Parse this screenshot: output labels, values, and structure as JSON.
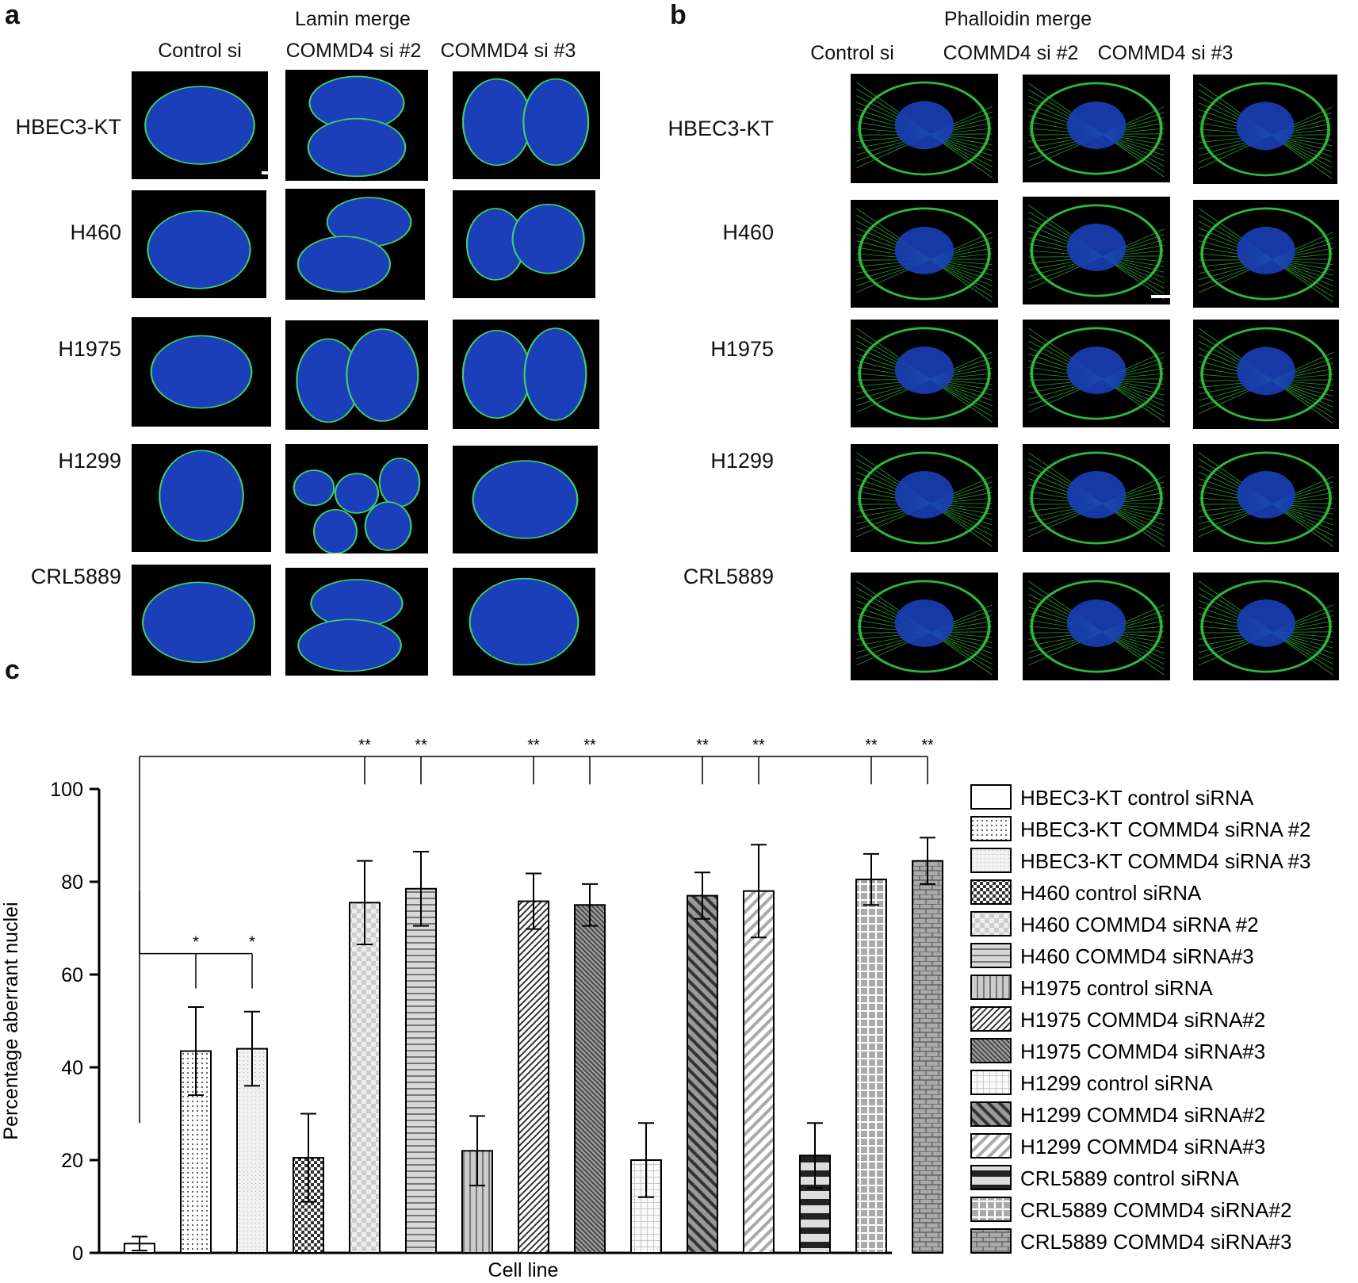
{
  "panel_a": {
    "letter": "a",
    "title": "Lamin merge",
    "columns": [
      "Control si",
      "COMMD4 si #2",
      "COMMD4 si #3"
    ]
  },
  "panel_b": {
    "letter": "b",
    "title": "Phalloidin merge",
    "columns": [
      "Control si",
      "COMMD4 si #2",
      "COMMD4 si #3"
    ]
  },
  "rows": [
    "HBEC3-KT",
    "H460",
    "H1975",
    "H1299",
    "CRL5889"
  ],
  "panel_c": {
    "letter": "c"
  },
  "colors": {
    "nucleus": "#1a3fb8",
    "lamin": "#3fd06a",
    "actin": "#2fb83a",
    "background": "#000000"
  },
  "chart_data": {
    "type": "bar",
    "xlabel": "Cell line",
    "ylabel": "Percentage aberrant nuclei",
    "ylim": [
      0,
      100
    ],
    "yticks": [
      0,
      20,
      40,
      60,
      80,
      100
    ],
    "legend_position": "right",
    "categories": [
      "HBEC3-KT control siRNA",
      "HBEC3-KT COMMD4 siRNA #2",
      "HBEC3-KT COMMD4 siRNA #3",
      "H460 control siRNA",
      "H460 COMMD4 siRNA #2",
      "H460 COMMD4 siRNA#3",
      "H1975 control siRNA",
      "H1975 COMMD4 siRNA#2",
      "H1975 COMMD4 siRNA#3",
      "H1299 control siRNA",
      "H1299 COMMD4 siRNA#2",
      "H1299 COMMD4 siRNA#3",
      "CRL5889 control siRNA",
      "CRL5889 COMMD4 siRNA#2",
      "CRL5889 COMMD4 siRNA#3"
    ],
    "values": [
      2,
      43.5,
      44,
      20.5,
      75.5,
      78.5,
      22,
      75.8,
      75,
      20,
      77,
      78,
      21,
      80.5,
      84.5
    ],
    "errors": [
      1.5,
      9.5,
      8,
      9.5,
      9,
      8,
      7.5,
      6,
      4.5,
      8,
      5,
      10,
      7,
      5.5,
      5
    ],
    "patterns": [
      "white",
      "dots",
      "fine-dots",
      "checker",
      "light-checker",
      "horizontal",
      "vertical",
      "diagonal",
      "diagonal-dense",
      "grid",
      "diagonal-wide",
      "diagonal-light",
      "h-bands",
      "plus-grid",
      "bricks"
    ],
    "annotations": [
      {
        "bars": [
          1,
          2
        ],
        "label": "*"
      },
      {
        "bars": [
          4,
          5,
          7,
          8,
          10,
          11,
          13,
          14
        ],
        "label": "**"
      }
    ]
  }
}
